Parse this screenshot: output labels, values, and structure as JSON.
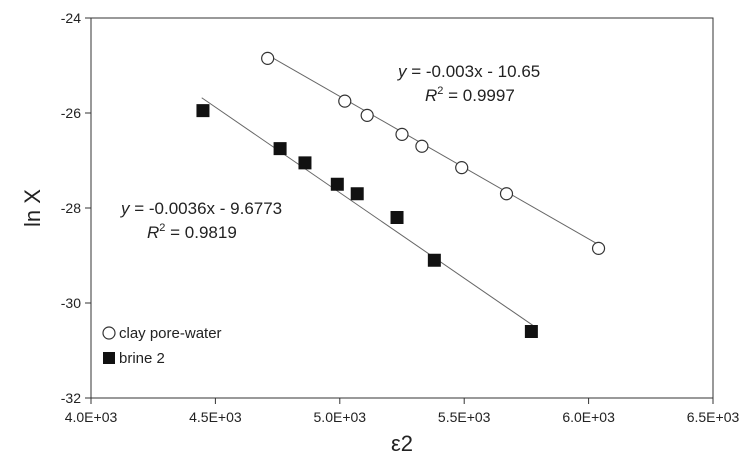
{
  "chart_data": {
    "type": "scatter",
    "xlabel": "ε2",
    "ylabel": "ln X",
    "xlim": [
      4000,
      6500
    ],
    "ylim": [
      -32,
      -24
    ],
    "x_ticks": [
      4000,
      4500,
      5000,
      5500,
      6000,
      6500
    ],
    "x_tick_labels": [
      "4.0E+03",
      "4.5E+03",
      "5.0E+03",
      "5.5E+03",
      "6.0E+03",
      "6.5E+03"
    ],
    "y_ticks": [
      -32,
      -30,
      -28,
      -26,
      -24
    ],
    "y_tick_labels": [
      "-32",
      "-30",
      "-28",
      "-26",
      "-24"
    ],
    "grid": false,
    "legend_position": "bottom-left",
    "series": [
      {
        "name": "clay pore-water",
        "marker": "open-circle",
        "x": [
          4710,
          5020,
          5110,
          5250,
          5330,
          5490,
          5670,
          6040
        ],
        "y": [
          -24.85,
          -25.75,
          -26.05,
          -26.45,
          -26.7,
          -27.15,
          -27.7,
          -28.85
        ],
        "trendline": {
          "slope": -0.003,
          "intercept": -10.65,
          "x_range": [
            4710,
            6040
          ],
          "equation_lhs": "y",
          "equation_rhs": " = -0.003x - 10.65",
          "r2_label": "R",
          "r2_value": " = 0.9997"
        }
      },
      {
        "name": "brine 2",
        "marker": "filled-square",
        "x": [
          4450,
          4760,
          4860,
          4990,
          5070,
          5230,
          5380,
          5770
        ],
        "y": [
          -25.95,
          -26.75,
          -27.05,
          -27.5,
          -27.7,
          -28.2,
          -29.1,
          -30.6
        ],
        "trendline": {
          "slope": -0.0036,
          "intercept": -9.6773,
          "x_range": [
            4450,
            5770
          ],
          "equation_lhs": "y",
          "equation_rhs": " = -0.0036x - 9.6773",
          "r2_label": "R",
          "r2_value": " = 0.9819"
        }
      }
    ]
  }
}
